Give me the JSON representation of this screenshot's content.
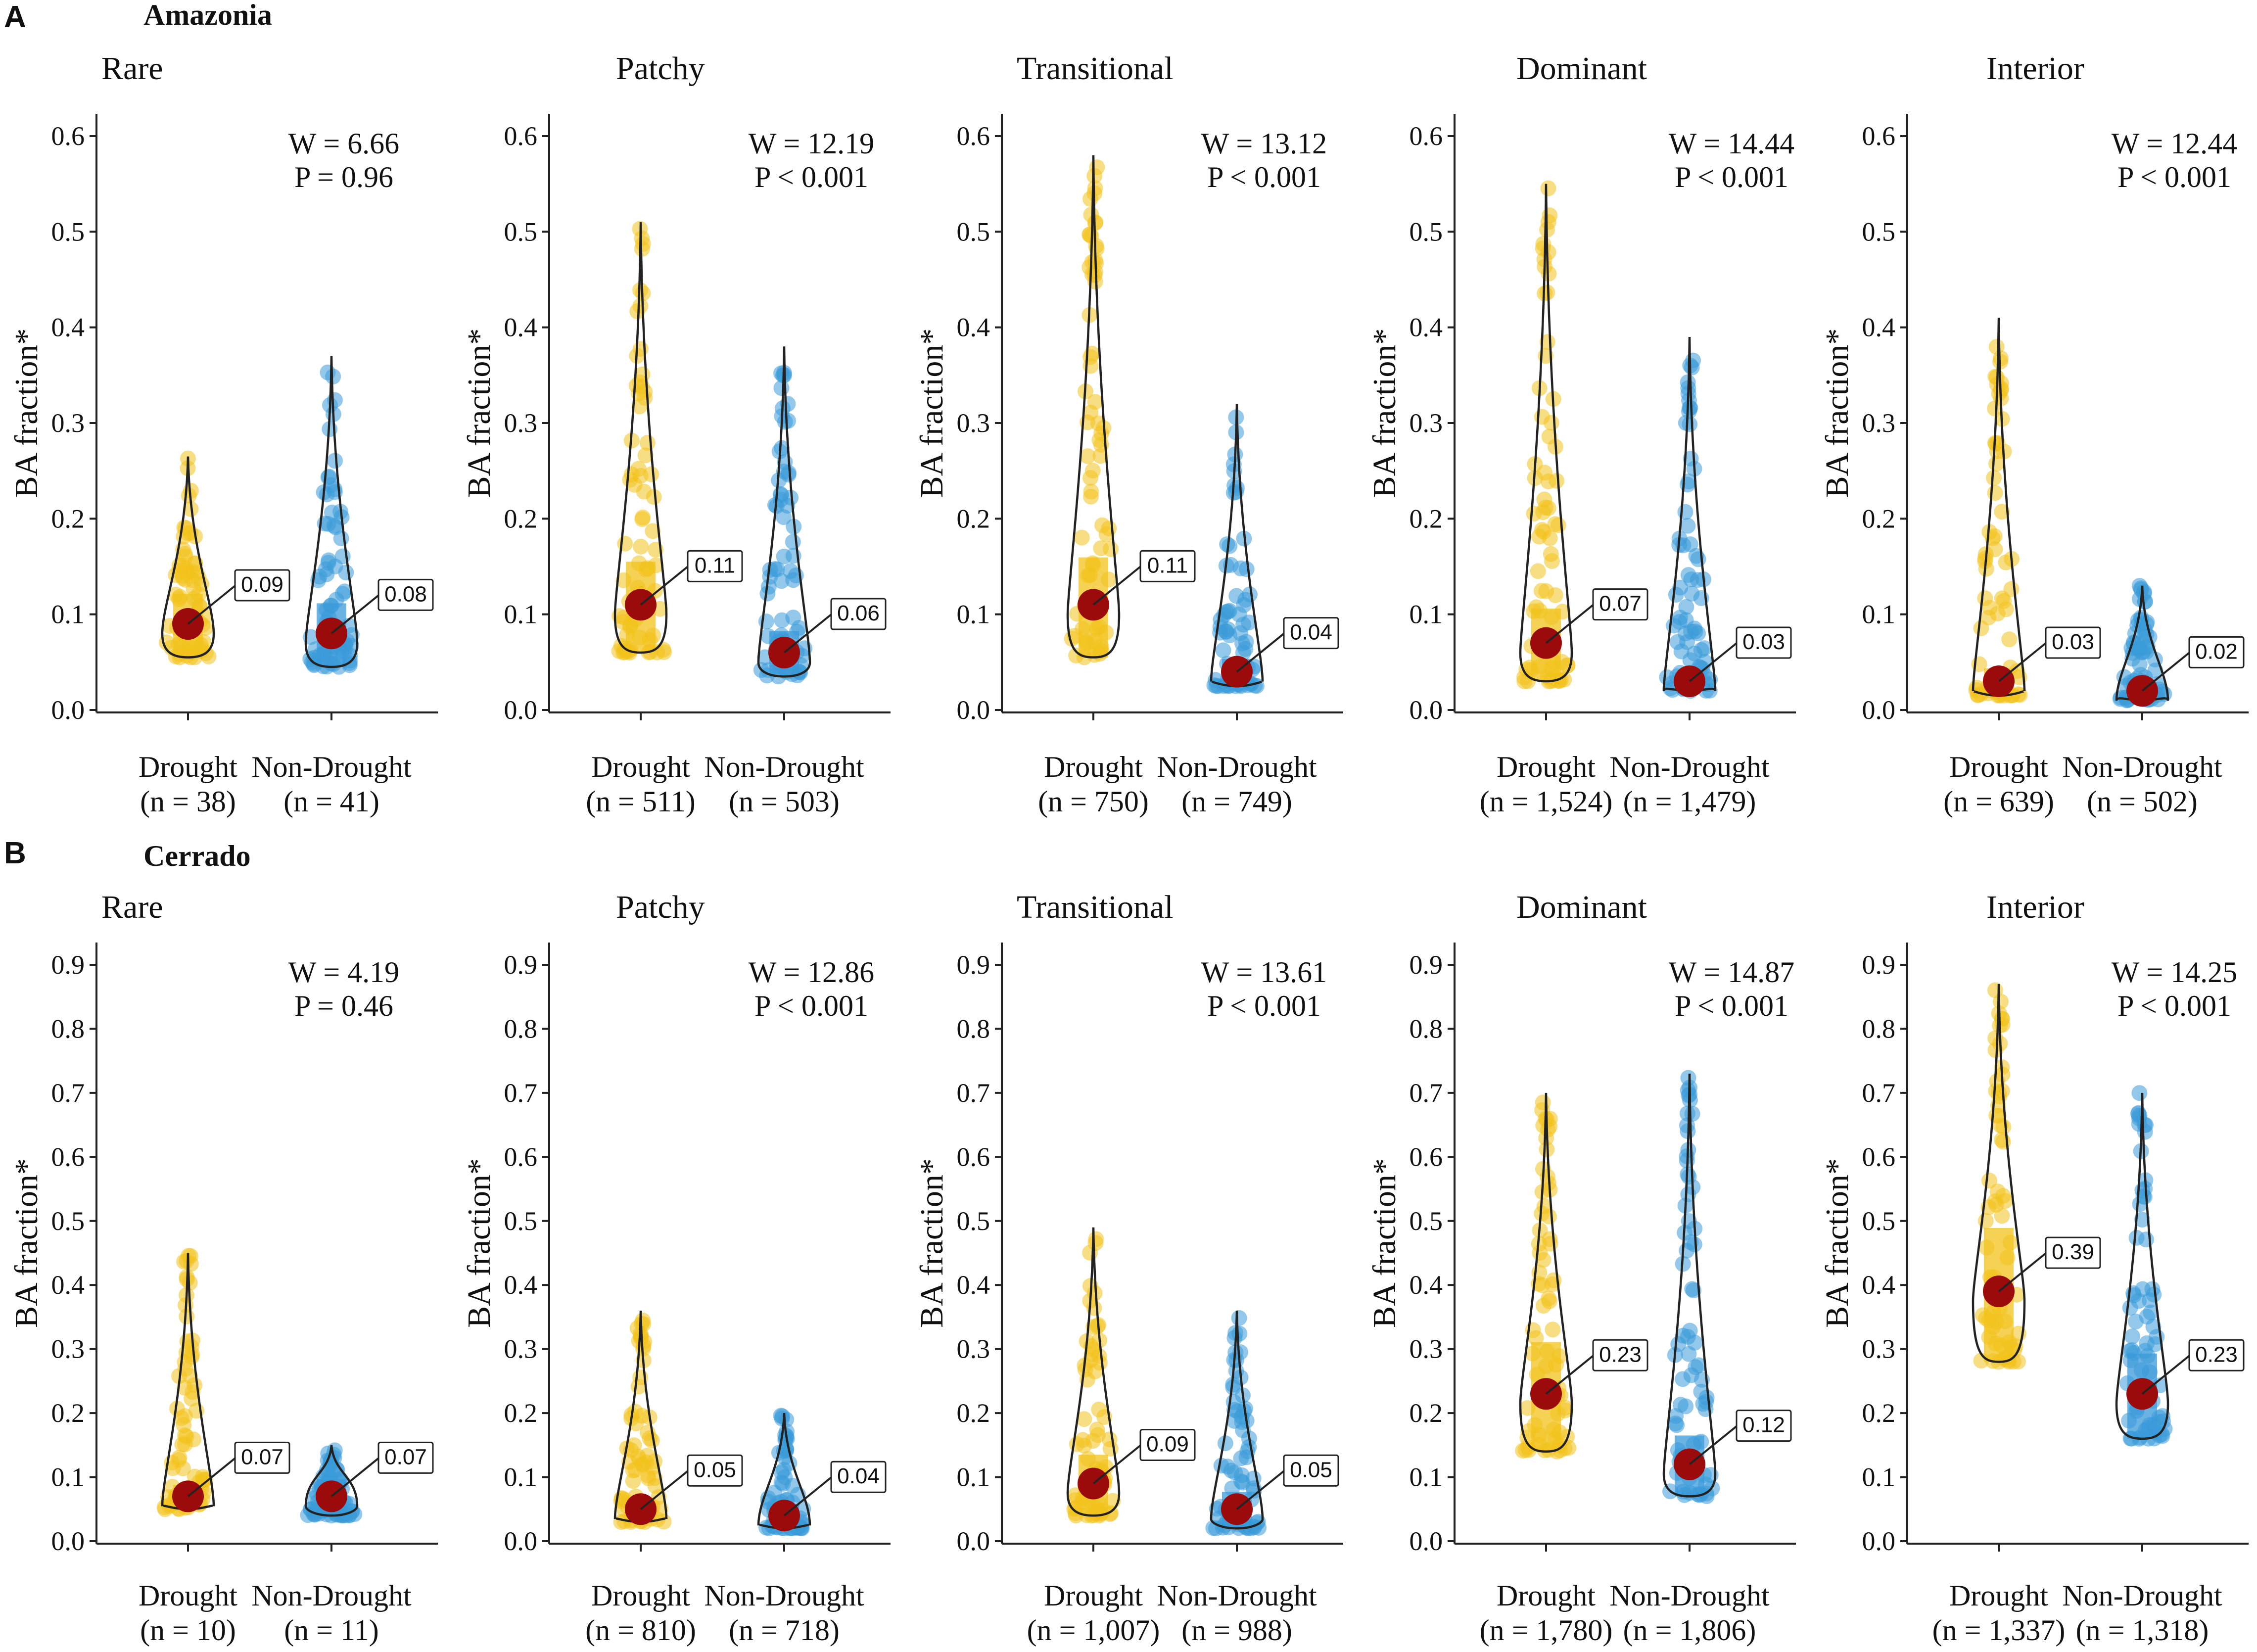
{
  "figure": {
    "y_axis_label": "BA fraction*",
    "colors": {
      "drought": "#F2C31B",
      "non_drought": "#3A9AD9",
      "median_point": "#9B0B0B",
      "label_text": "#B01919",
      "violin": "#222222"
    }
  },
  "chart_data": [
    {
      "panel_letter": "A",
      "region": "Amazonia",
      "type": "violin",
      "ylim": [
        0,
        0.6
      ],
      "yticks": [
        "0.0",
        "0.1",
        "0.2",
        "0.3",
        "0.4",
        "0.5",
        "0.6"
      ],
      "categories": [
        "Drought",
        "Non-Drought"
      ],
      "panels": [
        {
          "title": "Rare",
          "stat_w": "W = 6.66",
          "stat_p": "P = 0.96",
          "groups": [
            {
              "name": "Drought",
              "n_label": "(n = 38)",
              "median": 0.09,
              "median_label": "0.09",
              "min": 0.055,
              "max": 0.265
            },
            {
              "name": "Non-Drought",
              "n_label": "(n = 41)",
              "median": 0.08,
              "median_label": "0.08",
              "min": 0.045,
              "max": 0.37
            }
          ]
        },
        {
          "title": "Patchy",
          "stat_w": "W = 12.19",
          "stat_p": "P < 0.001",
          "groups": [
            {
              "name": "Drought",
              "n_label": "(n = 511)",
              "median": 0.11,
              "median_label": "0.11",
              "min": 0.06,
              "max": 0.51
            },
            {
              "name": "Non-Drought",
              "n_label": "(n = 503)",
              "median": 0.06,
              "median_label": "0.06",
              "min": 0.035,
              "max": 0.38
            }
          ]
        },
        {
          "title": "Transitional",
          "stat_w": "W = 13.12",
          "stat_p": "P < 0.001",
          "groups": [
            {
              "name": "Drought",
              "n_label": "(n = 750)",
              "median": 0.11,
              "median_label": "0.11",
              "min": 0.055,
              "max": 0.58
            },
            {
              "name": "Non-Drought",
              "n_label": "(n = 749)",
              "median": 0.04,
              "median_label": "0.04",
              "min": 0.025,
              "max": 0.32
            }
          ]
        },
        {
          "title": "Dominant",
          "stat_w": "W = 14.44",
          "stat_p": "P < 0.001",
          "groups": [
            {
              "name": "Drought",
              "n_label": "(n = 1,524)",
              "median": 0.07,
              "median_label": "0.07",
              "min": 0.03,
              "max": 0.55
            },
            {
              "name": "Non-Drought",
              "n_label": "(n = 1,479)",
              "median": 0.03,
              "median_label": "0.03",
              "min": 0.02,
              "max": 0.39
            }
          ]
        },
        {
          "title": "Interior",
          "stat_w": "W = 12.44",
          "stat_p": "P < 0.001",
          "groups": [
            {
              "name": "Drought",
              "n_label": "(n = 639)",
              "median": 0.03,
              "median_label": "0.03",
              "min": 0.015,
              "max": 0.41
            },
            {
              "name": "Non-Drought",
              "n_label": "(n = 502)",
              "median": 0.02,
              "median_label": "0.02",
              "min": 0.01,
              "max": 0.13
            }
          ]
        }
      ]
    },
    {
      "panel_letter": "B",
      "region": "Cerrado",
      "type": "violin",
      "ylim": [
        0,
        0.9
      ],
      "yticks": [
        "0.0",
        "0.1",
        "0.2",
        "0.3",
        "0.4",
        "0.5",
        "0.6",
        "0.7",
        "0.8",
        "0.9"
      ],
      "categories": [
        "Drought",
        "Non-Drought"
      ],
      "panels": [
        {
          "title": "Rare",
          "stat_w": "W = 4.19",
          "stat_p": "P = 0.46",
          "groups": [
            {
              "name": "Drought",
              "n_label": "(n = 10)",
              "median": 0.07,
              "median_label": "0.07",
              "min": 0.05,
              "max": 0.45
            },
            {
              "name": "Non-Drought",
              "n_label": "(n = 11)",
              "median": 0.07,
              "median_label": "0.07",
              "min": 0.04,
              "max": 0.15
            }
          ]
        },
        {
          "title": "Patchy",
          "stat_w": "W = 12.86",
          "stat_p": "P < 0.001",
          "groups": [
            {
              "name": "Drought",
              "n_label": "(n = 810)",
              "median": 0.05,
              "median_label": "0.05",
              "min": 0.03,
              "max": 0.36
            },
            {
              "name": "Non-Drought",
              "n_label": "(n = 718)",
              "median": 0.04,
              "median_label": "0.04",
              "min": 0.02,
              "max": 0.2
            }
          ]
        },
        {
          "title": "Transitional",
          "stat_w": "W = 13.61",
          "stat_p": "P < 0.001",
          "groups": [
            {
              "name": "Drought",
              "n_label": "(n = 1,007)",
              "median": 0.09,
              "median_label": "0.09",
              "min": 0.04,
              "max": 0.49
            },
            {
              "name": "Non-Drought",
              "n_label": "(n = 988)",
              "median": 0.05,
              "median_label": "0.05",
              "min": 0.02,
              "max": 0.36
            }
          ]
        },
        {
          "title": "Dominant",
          "stat_w": "W = 14.87",
          "stat_p": "P < 0.001",
          "groups": [
            {
              "name": "Drought",
              "n_label": "(n = 1,780)",
              "median": 0.23,
              "median_label": "0.23",
              "min": 0.14,
              "max": 0.7
            },
            {
              "name": "Non-Drought",
              "n_label": "(n = 1,806)",
              "median": 0.12,
              "median_label": "0.12",
              "min": 0.07,
              "max": 0.73
            }
          ]
        },
        {
          "title": "Interior",
          "stat_w": "W = 14.25",
          "stat_p": "P < 0.001",
          "groups": [
            {
              "name": "Drought",
              "n_label": "(n = 1,337)",
              "median": 0.39,
              "median_label": "0.39",
              "min": 0.28,
              "max": 0.87
            },
            {
              "name": "Non-Drought",
              "n_label": "(n = 1,318)",
              "median": 0.23,
              "median_label": "0.23",
              "min": 0.16,
              "max": 0.7
            }
          ]
        }
      ]
    }
  ]
}
